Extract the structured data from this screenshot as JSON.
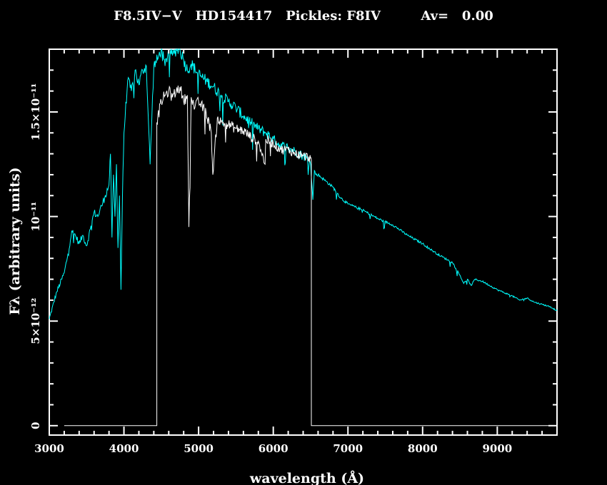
{
  "chart_data": {
    "type": "line",
    "title": "F8.5IV−V   HD154417   Pickles: F8IV         Av=   0.00",
    "xlabel": "wavelength (Å)",
    "ylabel": "Fλ (arbitrary units)",
    "xlim": [
      3000,
      9800
    ],
    "ylim": [
      -4.5e-13,
      1.8e-11
    ],
    "x_ticks": [
      {
        "value": 3000,
        "label": "3000"
      },
      {
        "value": 4000,
        "label": "4000"
      },
      {
        "value": 5000,
        "label": "5000"
      },
      {
        "value": 6000,
        "label": "6000"
      },
      {
        "value": 7000,
        "label": "7000"
      },
      {
        "value": 8000,
        "label": "8000"
      },
      {
        "value": 9000,
        "label": "9000"
      }
    ],
    "y_ticks": [
      {
        "value": 0,
        "label": "0"
      },
      {
        "value": 5e-12,
        "label": "5×10⁻¹²"
      },
      {
        "value": 1e-11,
        "label": "10⁻¹¹"
      },
      {
        "value": 1.5e-11,
        "label": "1.5×10⁻¹¹"
      }
    ],
    "grid": false,
    "colors": {
      "background": "#000000",
      "axes": "#ffffff",
      "series_1": "#00ffff",
      "series_2": "#ffffff"
    },
    "series": [
      {
        "color": "#00ffff",
        "x": [
          3000,
          3100,
          3200,
          3250,
          3300,
          3350,
          3400,
          3450,
          3500,
          3550,
          3600,
          3650,
          3700,
          3750,
          3800,
          3820,
          3840,
          3860,
          3880,
          3900,
          3920,
          3940,
          3960,
          3980,
          4000,
          4050,
          4100,
          4150,
          4200,
          4250,
          4300,
          4350,
          4400,
          4450,
          4500,
          4550,
          4600,
          4650,
          4700,
          4750,
          4800,
          4850,
          4900,
          5000,
          5100,
          5200,
          5300,
          5400,
          5500,
          5600,
          5700,
          5800,
          5900,
          6000,
          6100,
          6200,
          6300,
          6400,
          6450,
          6500,
          6530,
          6550,
          6570,
          6600,
          6700,
          6800,
          6900,
          7000,
          7200,
          7400,
          7600,
          7800,
          8000,
          8200,
          8400,
          8500,
          8550,
          8600,
          8650,
          8700,
          8800,
          9000,
          9200,
          9300,
          9400,
          9500,
          9600,
          9700,
          9800
        ],
        "y": [
          5.1e-12,
          6.4e-12,
          7.3e-12,
          8.2e-12,
          9.3e-12,
          9.1e-12,
          8.7e-12,
          9.1e-12,
          8.6e-12,
          9.4e-12,
          1.02e-11,
          1e-11,
          1.05e-11,
          1.1e-11,
          1.15e-11,
          1.3e-11,
          9e-12,
          1.2e-11,
          1e-11,
          1.25e-11,
          8.5e-12,
          1.1e-11,
          6.5e-12,
          1.1e-11,
          1.4e-11,
          1.65e-11,
          1.6e-11,
          1.7e-11,
          1.63e-11,
          1.7e-11,
          1.72e-11,
          1.25e-11,
          1.72e-11,
          1.75e-11,
          1.8e-11,
          1.72e-11,
          1.8e-11,
          1.77e-11,
          1.8e-11,
          1.8e-11,
          1.75e-11,
          1.7e-11,
          1.73e-11,
          1.68e-11,
          1.65e-11,
          1.62e-11,
          1.58e-11,
          1.55e-11,
          1.52e-11,
          1.48e-11,
          1.45e-11,
          1.42e-11,
          1.4e-11,
          1.37e-11,
          1.34e-11,
          1.33e-11,
          1.31e-11,
          1.29e-11,
          1.28e-11,
          1.25e-11,
          1.08e-11,
          1.22e-11,
          1.2e-11,
          1.2e-11,
          1.17e-11,
          1.14e-11,
          1.09e-11,
          1.06e-11,
          1.03e-11,
          9.9e-12,
          9.6e-12,
          9.1e-12,
          8.7e-12,
          8.2e-12,
          7.8e-12,
          7.2e-12,
          6.8e-12,
          7e-12,
          6.7e-12,
          7e-12,
          6.9e-12,
          6.5e-12,
          6.2e-12,
          6e-12,
          6.1e-12,
          5.9e-12,
          5.8e-12,
          5.7e-12,
          5.5e-12
        ]
      },
      {
        "color": "#ffffff",
        "x": [
          3200,
          4440,
          4440,
          4500,
          4550,
          4600,
          4650,
          4700,
          4750,
          4800,
          4850,
          4870,
          4900,
          4950,
          5000,
          5100,
          5170,
          5190,
          5250,
          5300,
          5400,
          5500,
          5600,
          5700,
          5800,
          5890,
          5900,
          6000,
          6100,
          6200,
          6300,
          6400,
          6500,
          6510,
          6510,
          9800
        ],
        "y": [
          0,
          0,
          1.45e-11,
          1.55e-11,
          1.58e-11,
          1.6e-11,
          1.57e-11,
          1.6e-11,
          1.62e-11,
          1.55e-11,
          1.58e-11,
          9.5e-12,
          1.57e-11,
          1.52e-11,
          1.55e-11,
          1.5e-11,
          1.4e-11,
          1.2e-11,
          1.47e-11,
          1.45e-11,
          1.44e-11,
          1.42e-11,
          1.41e-11,
          1.38e-11,
          1.36e-11,
          1.25e-11,
          1.37e-11,
          1.35e-11,
          1.32e-11,
          1.32e-11,
          1.3e-11,
          1.29e-11,
          1.28e-11,
          1.27e-11,
          0,
          0
        ]
      }
    ]
  }
}
